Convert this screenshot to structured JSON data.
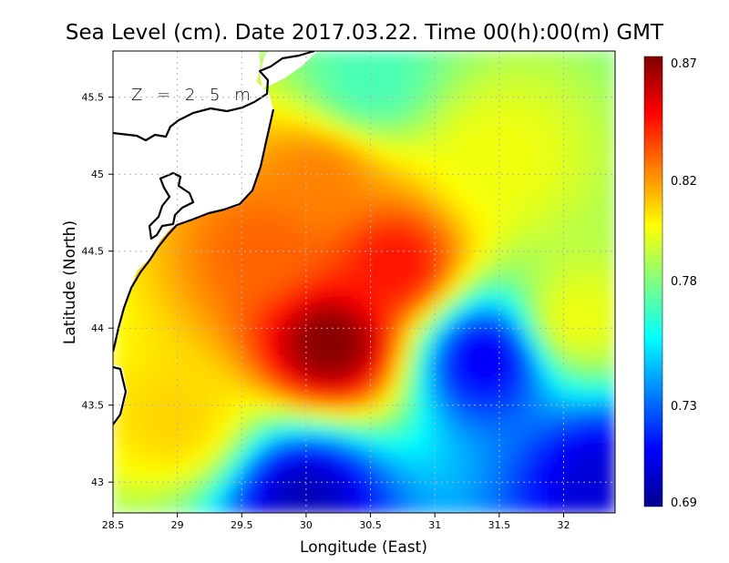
{
  "chart_data": {
    "type": "heatmap",
    "title": "Sea Level (cm). Date 2017.03.22. Time 00(h):00(m) GMT",
    "xlabel": "Longitude (East)",
    "ylabel": "Latitude (North)",
    "annotation": "Z = 2.5 m",
    "xlim": [
      28.5,
      32.4
    ],
    "ylim": [
      42.8,
      45.8
    ],
    "xticks": [
      28.5,
      29,
      29.5,
      30,
      30.5,
      31,
      31.5,
      32
    ],
    "xtick_labels": [
      "28.5",
      "29",
      "29.5",
      "30",
      "30.5",
      "31",
      "31.5",
      "32"
    ],
    "yticks": [
      43,
      43.5,
      44,
      44.5,
      45,
      45.5
    ],
    "ytick_labels": [
      "43",
      "43.5",
      "44",
      "44.5",
      "45",
      "45.5"
    ],
    "grid": true,
    "colorbar": {
      "min": 0.69,
      "max": 0.87,
      "ticks": [
        0.87,
        0.82,
        0.78,
        0.73,
        0.69
      ],
      "tick_labels": [
        "0.87",
        "0.82",
        "0.78",
        "0.73",
        "0.69"
      ],
      "colormap": "jet"
    },
    "field_features": [
      {
        "lon": 30.2,
        "lat": 43.9,
        "value": 0.87
      },
      {
        "lon": 30.7,
        "lat": 44.4,
        "value": 0.845
      },
      {
        "lon": 29.7,
        "lat": 44.5,
        "value": 0.83
      },
      {
        "lon": 30.1,
        "lat": 44.95,
        "value": 0.825
      },
      {
        "lon": 31.5,
        "lat": 45.1,
        "value": 0.8
      },
      {
        "lon": 31.4,
        "lat": 43.8,
        "value": 0.71
      },
      {
        "lon": 30.0,
        "lat": 42.9,
        "value": 0.7
      },
      {
        "lon": 32.3,
        "lat": 43.0,
        "value": 0.705
      },
      {
        "lon": 32.1,
        "lat": 44.05,
        "value": 0.8
      },
      {
        "lon": 29.0,
        "lat": 43.4,
        "value": 0.81
      },
      {
        "lon": 30.5,
        "lat": 45.6,
        "value": 0.77
      }
    ],
    "colors": {
      "land": "#ffffff",
      "coast": "#000000",
      "grid": "#aaaaaa"
    }
  }
}
